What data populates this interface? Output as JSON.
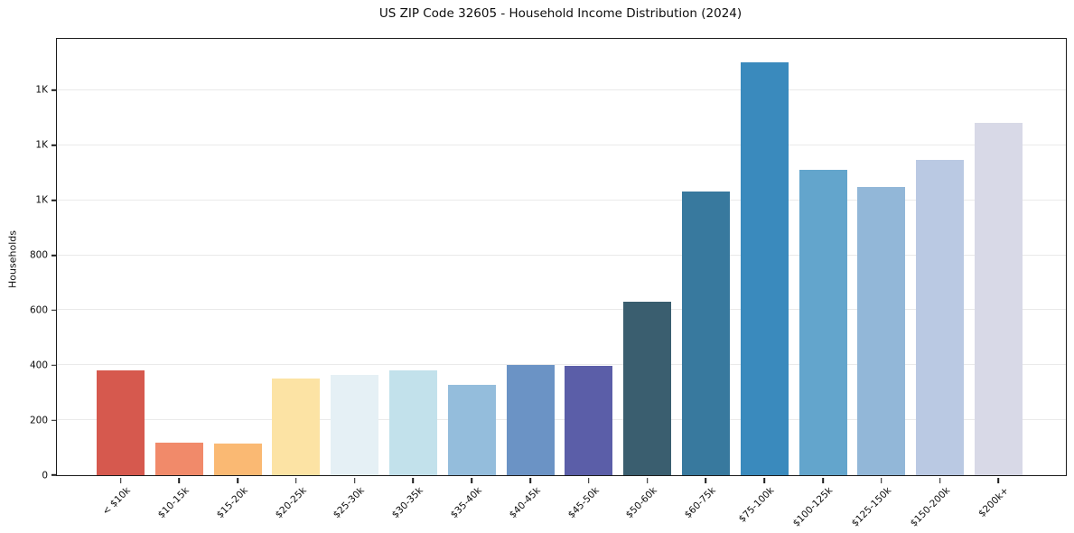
{
  "chart_data": {
    "type": "bar",
    "title": "US ZIP Code 32605 - Household Income Distribution (2024)",
    "xlabel": "",
    "ylabel": "Households",
    "categories": [
      "< $10k",
      "$10-15k",
      "$15-20k",
      "$20-25k",
      "$25-30k",
      "$30-35k",
      "$35-40k",
      "$40-45k",
      "$45-50k",
      "$50-60k",
      "$60-75k",
      "$75-100k",
      "$100-125k",
      "$125-150k",
      "$150-200k",
      "$200k+"
    ],
    "values": [
      380,
      118,
      115,
      353,
      364,
      380,
      330,
      401,
      398,
      630,
      1033,
      1500,
      1112,
      1049,
      1148,
      1280
    ],
    "bar_colors": [
      "#d6594e",
      "#f18a6a",
      "#fab973",
      "#fce3a4",
      "#e5f0f5",
      "#c2e1eb",
      "#94bddc",
      "#6b93c5",
      "#5b5ea8",
      "#3a5e6f",
      "#38799e",
      "#3a8abd",
      "#63a5cc",
      "#92b7d8",
      "#bac9e3",
      "#d8d9e7"
    ],
    "ylim": [
      0,
      1587
    ],
    "yticks": [
      {
        "value": 0,
        "label": "0"
      },
      {
        "value": 200,
        "label": "200"
      },
      {
        "value": 400,
        "label": "400"
      },
      {
        "value": 600,
        "label": "600"
      },
      {
        "value": 800,
        "label": "800"
      },
      {
        "value": 1000,
        "label": "1K"
      },
      {
        "value": 1200,
        "label": "1K"
      },
      {
        "value": 1400,
        "label": "1K"
      }
    ],
    "grid": "horizontal",
    "legend": "none",
    "colors": {
      "spine": "#1c1c1c",
      "grid": "#eaeaea",
      "text": "#0d0d0d",
      "background": "#ffffff"
    }
  }
}
